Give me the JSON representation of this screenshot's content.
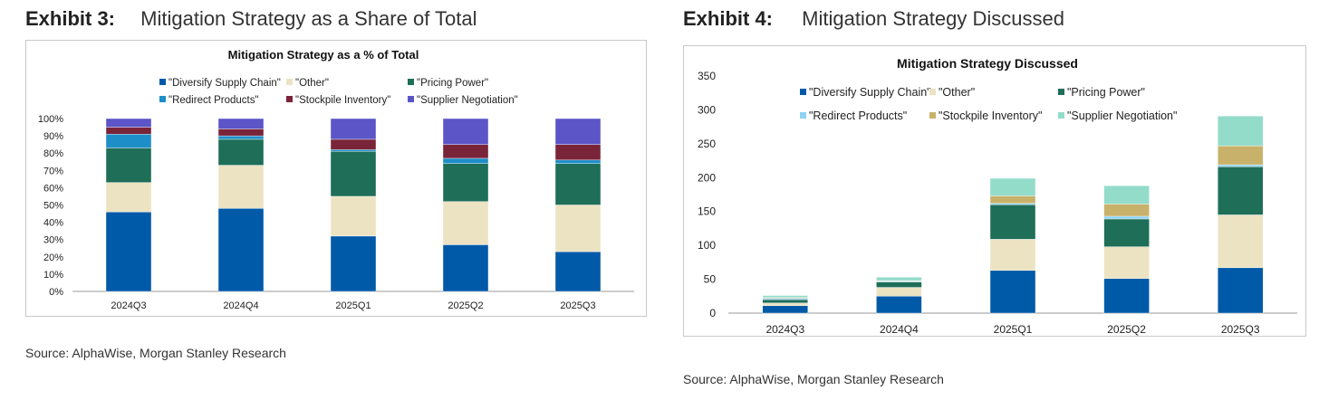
{
  "colors": {
    "diversify": "#005aa8",
    "other": "#ece3c2",
    "pricing": "#1e6e58",
    "redirect_ex3": "#1e8ec8",
    "stockpile_ex3": "#7a2439",
    "supplier_ex3": "#5b55c8",
    "redirect_ex4": "#8dd3f3",
    "stockpile_ex4": "#c8b16a",
    "supplier_ex4": "#93dcca"
  },
  "exhibit3": {
    "label": "Exhibit 3:",
    "title": "Mitigation Strategy as a Share of Total",
    "source": "Source: AlphaWise, Morgan Stanley Research",
    "chart_data": {
      "type": "bar",
      "stacked": true,
      "title": "Mitigation Strategy as a % of Total",
      "xlabel": "",
      "ylabel": "",
      "ylim": [
        0,
        100
      ],
      "yticks": [
        "0%",
        "10%",
        "20%",
        "30%",
        "40%",
        "50%",
        "60%",
        "70%",
        "80%",
        "90%",
        "100%"
      ],
      "categories": [
        "2024Q3",
        "2024Q4",
        "2025Q1",
        "2025Q2",
        "2025Q3"
      ],
      "legend_position": "top",
      "series": [
        {
          "name": "\"Diversify Supply Chain\"",
          "color_key": "diversify",
          "values": [
            46,
            48,
            32,
            27,
            23
          ]
        },
        {
          "name": "\"Other\"",
          "color_key": "other",
          "values": [
            17,
            25,
            23,
            25,
            27
          ]
        },
        {
          "name": "\"Pricing Power\"",
          "color_key": "pricing",
          "values": [
            20,
            15,
            26,
            22,
            24
          ]
        },
        {
          "name": "\"Redirect Products\"",
          "color_key": "redirect_ex3",
          "values": [
            8,
            2,
            1,
            3,
            2
          ]
        },
        {
          "name": "\"Stockpile Inventory\"",
          "color_key": "stockpile_ex3",
          "values": [
            4,
            4,
            6,
            8,
            9
          ]
        },
        {
          "name": "\"Supplier Negotiation\"",
          "color_key": "supplier_ex3",
          "values": [
            5,
            6,
            12,
            15,
            15
          ]
        }
      ]
    }
  },
  "exhibit4": {
    "label": "Exhibit 4:",
    "title": "Mitigation Strategy Discussed",
    "source": "Source:  AlphaWise, Morgan Stanley Research",
    "chart_data": {
      "type": "bar",
      "stacked": true,
      "title": "Mitigation Strategy Discussed",
      "xlabel": "",
      "ylabel": "",
      "ylim": [
        0,
        350
      ],
      "yticks": [
        "0",
        "50",
        "100",
        "150",
        "200",
        "250",
        "300",
        "350"
      ],
      "categories": [
        "2024Q3",
        "2024Q4",
        "2025Q1",
        "2025Q2",
        "2025Q3"
      ],
      "legend_position": "top",
      "series": [
        {
          "name": "\"Diversify Supply Chain\"",
          "color_key": "diversify",
          "values": [
            11,
            25,
            63,
            51,
            67
          ]
        },
        {
          "name": "\"Other\"",
          "color_key": "other",
          "values": [
            4,
            13,
            46,
            47,
            78
          ]
        },
        {
          "name": "\"Pricing Power\"",
          "color_key": "pricing",
          "values": [
            5,
            8,
            51,
            41,
            71
          ]
        },
        {
          "name": "\"Redirect Products\"",
          "color_key": "redirect_ex4",
          "values": [
            2,
            1,
            2,
            4,
            3
          ]
        },
        {
          "name": "\"Stockpile Inventory\"",
          "color_key": "stockpile_ex4",
          "values": [
            1,
            1,
            11,
            18,
            28
          ]
        },
        {
          "name": "\"Supplier Negotiation\"",
          "color_key": "supplier_ex4",
          "values": [
            3,
            5,
            26,
            27,
            44
          ]
        }
      ]
    }
  }
}
